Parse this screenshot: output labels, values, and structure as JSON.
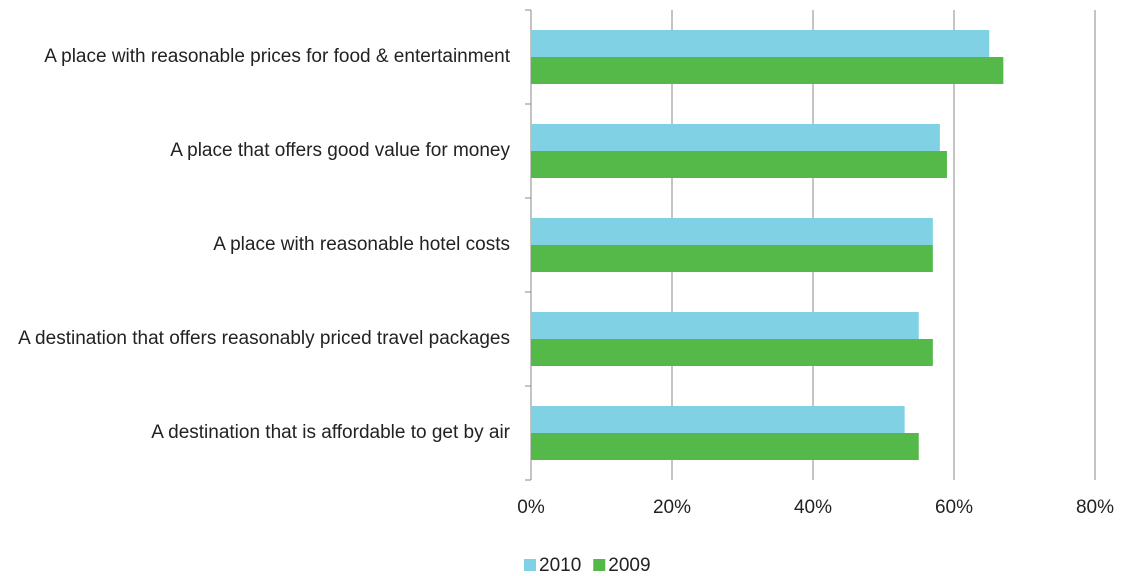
{
  "chart_data": {
    "type": "hbar",
    "categories": [
      "A place with reasonable prices for food & entertainment",
      "A place that offers good value for money",
      "A place with reasonable hotel costs",
      "A destination that offers reasonably priced travel packages",
      "A destination that is affordable to get by air"
    ],
    "series": [
      {
        "name": "2010",
        "color": "#7fd1e3",
        "values": [
          65,
          58,
          57,
          55,
          53
        ]
      },
      {
        "name": "2009",
        "color": "#55b94a",
        "values": [
          67,
          59,
          57,
          57,
          55
        ]
      }
    ],
    "xlim": [
      0,
      80
    ],
    "xticks": [
      {
        "value": 0,
        "label": "0%"
      },
      {
        "value": 20,
        "label": "20%"
      },
      {
        "value": 40,
        "label": "40%"
      },
      {
        "value": 60,
        "label": "60%"
      },
      {
        "value": 80,
        "label": "80%"
      }
    ],
    "grid": true,
    "legend": "bottom"
  }
}
